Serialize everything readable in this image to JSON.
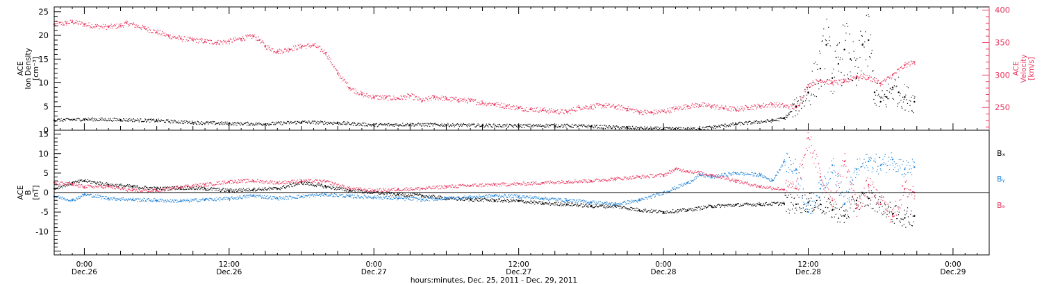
{
  "figure": {
    "xlabel": "hours:minutes, Dec. 25, 2011 - Dec. 29, 2011",
    "x_ticks": [
      {
        "hours": 0,
        "time": "0:00",
        "date": "Dec.26"
      },
      {
        "hours": 12,
        "time": "12:00",
        "date": "Dec.26"
      },
      {
        "hours": 24,
        "time": "0:00",
        "date": "Dec.27"
      },
      {
        "hours": 36,
        "time": "12:00",
        "date": "Dec.27"
      },
      {
        "hours": 48,
        "time": "0:00",
        "date": "Dec.28"
      },
      {
        "hours": 60,
        "time": "12:00",
        "date": "Dec.28"
      },
      {
        "hours": 72,
        "time": "0:00",
        "date": "Dec.29"
      }
    ]
  },
  "chart_data": [
    {
      "type": "scatter",
      "panel": "top",
      "xlim_hours_from_dec26_0000": [
        -2.5,
        75
      ],
      "ylim_left": [
        0,
        26
      ],
      "ylim_right": [
        215,
        405
      ],
      "ylabel_left": [
        "ACE",
        "Ion Density",
        "[cm⁻³]"
      ],
      "ylabel_right": [
        "ACE",
        "Velocity",
        "[km/s]"
      ],
      "yticks_left": [
        0,
        5,
        10,
        15,
        20,
        25
      ],
      "yticks_right": [
        250,
        300,
        350,
        400
      ],
      "colors": {
        "density": "#000000",
        "velocity": "#e8375e"
      },
      "series": [
        {
          "axis": "right",
          "color": "velocity",
          "hours": [
            -2.5,
            -1.5,
            -1.0,
            0,
            1,
            2,
            3,
            3.5,
            5,
            6,
            7,
            8,
            9,
            10,
            11,
            12,
            13,
            14,
            14.5,
            15,
            16,
            17,
            18,
            19,
            20,
            21,
            22,
            23,
            24,
            25,
            26,
            27,
            28,
            29,
            30,
            31,
            32,
            33,
            34,
            35,
            36,
            37,
            38,
            39,
            40,
            41,
            42,
            43,
            44,
            45,
            46,
            47,
            48,
            49,
            50,
            51,
            52,
            53,
            54,
            55,
            56,
            57,
            58,
            59,
            60,
            61,
            62,
            63,
            64,
            65,
            66,
            67,
            68,
            68.8
          ],
          "values": [
            378,
            380,
            382,
            378,
            375,
            374,
            376,
            380,
            372,
            366,
            360,
            356,
            354,
            352,
            350,
            352,
            356,
            360,
            354,
            344,
            336,
            340,
            344,
            346,
            334,
            302,
            280,
            270,
            266,
            265,
            264,
            268,
            260,
            266,
            263,
            262,
            260,
            257,
            255,
            252,
            249,
            247,
            246,
            244,
            243,
            250,
            251,
            253,
            251,
            248,
            243,
            242,
            244,
            248,
            252,
            254,
            252,
            249,
            247,
            250,
            252,
            255,
            252,
            250,
            285,
            292,
            288,
            290,
            298,
            296,
            287,
            300,
            315,
            320
          ]
        },
        {
          "axis": "left",
          "color": "density",
          "hours": [
            -2.5,
            0,
            3,
            6,
            9,
            12,
            15,
            18,
            21,
            24,
            27,
            30,
            33,
            36,
            39,
            42,
            45,
            48,
            51,
            54,
            57,
            58,
            59,
            60,
            61,
            61.5,
            62,
            62.5,
            63,
            63.5,
            64,
            64.5,
            65,
            65.5,
            66,
            66.5,
            67,
            67.5,
            68,
            68.8
          ],
          "values": [
            2.1,
            2.3,
            2.2,
            2.0,
            1.6,
            1.4,
            1.3,
            1.7,
            1.5,
            1.1,
            1.2,
            1.1,
            1.0,
            0.9,
            1.0,
            0.8,
            0.5,
            0.3,
            0.3,
            1.3,
            2.0,
            2.5,
            5,
            8,
            13,
            18,
            11,
            14,
            17,
            15,
            11,
            18,
            19,
            8,
            6,
            7,
            9,
            8,
            7,
            6
          ]
        }
      ]
    },
    {
      "type": "scatter",
      "panel": "bottom",
      "xlim_hours_from_dec26_0000": [
        -2.5,
        75
      ],
      "ylim": [
        -16,
        16
      ],
      "ylabel": [
        "ACE",
        "B",
        "[nT]"
      ],
      "yticks": [
        -10,
        -5,
        0,
        5,
        10,
        15
      ],
      "zero_line": true,
      "legend": [
        "Bₓ",
        "Bᵧ",
        "Bₔ"
      ],
      "colors": {
        "Bx": "#000000",
        "By": "#1a7fd6",
        "Bz": "#e8375e"
      },
      "series": [
        {
          "name": "Bx",
          "color": "Bx",
          "hours": [
            -2.5,
            -1,
            0,
            2,
            4,
            6,
            8,
            10,
            12,
            14,
            16,
            18,
            20,
            22,
            24,
            26,
            28,
            30,
            32,
            34,
            36,
            38,
            40,
            42,
            44,
            46,
            48,
            50,
            52,
            54,
            56,
            58,
            59,
            60,
            61,
            62,
            63,
            64,
            65,
            66,
            67,
            68,
            68.8
          ],
          "values": [
            1,
            2.5,
            3,
            2,
            1.5,
            1.0,
            1.2,
            1.0,
            0.5,
            0.8,
            1.0,
            2.5,
            1.5,
            0.5,
            0,
            -0.5,
            -0.8,
            -1.5,
            -1.8,
            -2.0,
            -2.2,
            -2.8,
            -3.0,
            -3.5,
            -3.5,
            -4.5,
            -5.0,
            -4.5,
            -3.5,
            -3.2,
            -3.0,
            -2.8,
            -3.0,
            -2.5,
            -3.0,
            -4.5,
            -6.0,
            -2.0,
            -1.5,
            -3.0,
            -5.5,
            -6.5,
            -6.0
          ]
        },
        {
          "name": "By",
          "color": "By",
          "hours": [
            -2.5,
            -1,
            0,
            2,
            4,
            6,
            8,
            10,
            12,
            14,
            16,
            18,
            20,
            22,
            24,
            26,
            28,
            30,
            32,
            34,
            36,
            38,
            40,
            42,
            44,
            46,
            48,
            50,
            51,
            52,
            54,
            56,
            57,
            58,
            59,
            60,
            61,
            62,
            63,
            64,
            65,
            66,
            67,
            68,
            68.8
          ],
          "values": [
            -1,
            -2,
            -0.5,
            -1.5,
            -1.8,
            -2.0,
            -2.2,
            -1.8,
            -1.6,
            -0.8,
            -1.5,
            -1.0,
            -0.5,
            -1.0,
            -1.2,
            -1.5,
            -1.8,
            -1.5,
            -1.2,
            -0.8,
            -1.0,
            -1.5,
            -2.0,
            -2.5,
            -3.0,
            -2.0,
            0.0,
            2.5,
            4.5,
            4.0,
            5.0,
            4.5,
            3.0,
            8.0,
            6.0,
            -5.0,
            1.0,
            7.0,
            -3.0,
            6.0,
            8.0,
            7.0,
            8.5,
            6.0,
            6.5
          ]
        },
        {
          "name": "Bz",
          "color": "Bz",
          "hours": [
            -2.5,
            -1,
            0,
            2,
            4,
            6,
            8,
            10,
            12,
            14,
            16,
            18,
            20,
            22,
            24,
            26,
            28,
            30,
            32,
            34,
            36,
            38,
            40,
            42,
            44,
            46,
            48,
            49,
            50,
            52,
            54,
            56,
            58,
            59,
            60,
            61,
            62,
            63,
            64,
            65,
            66,
            67,
            68,
            68.8
          ],
          "values": [
            2.5,
            2.0,
            1.5,
            1.5,
            0.5,
            0.5,
            1.5,
            2.0,
            2.8,
            3.0,
            2.5,
            3.0,
            2.8,
            1.0,
            0.5,
            0.8,
            1.0,
            1.5,
            1.8,
            2.0,
            2.2,
            2.5,
            2.8,
            3.0,
            3.5,
            4.0,
            4.5,
            6.0,
            5.5,
            4.5,
            3.0,
            1.5,
            0.8,
            1.0,
            14.0,
            4.0,
            -2.0,
            8.0,
            -4.0,
            2.0,
            -3.0,
            -6.0,
            1.0,
            0.0
          ]
        }
      ]
    }
  ]
}
